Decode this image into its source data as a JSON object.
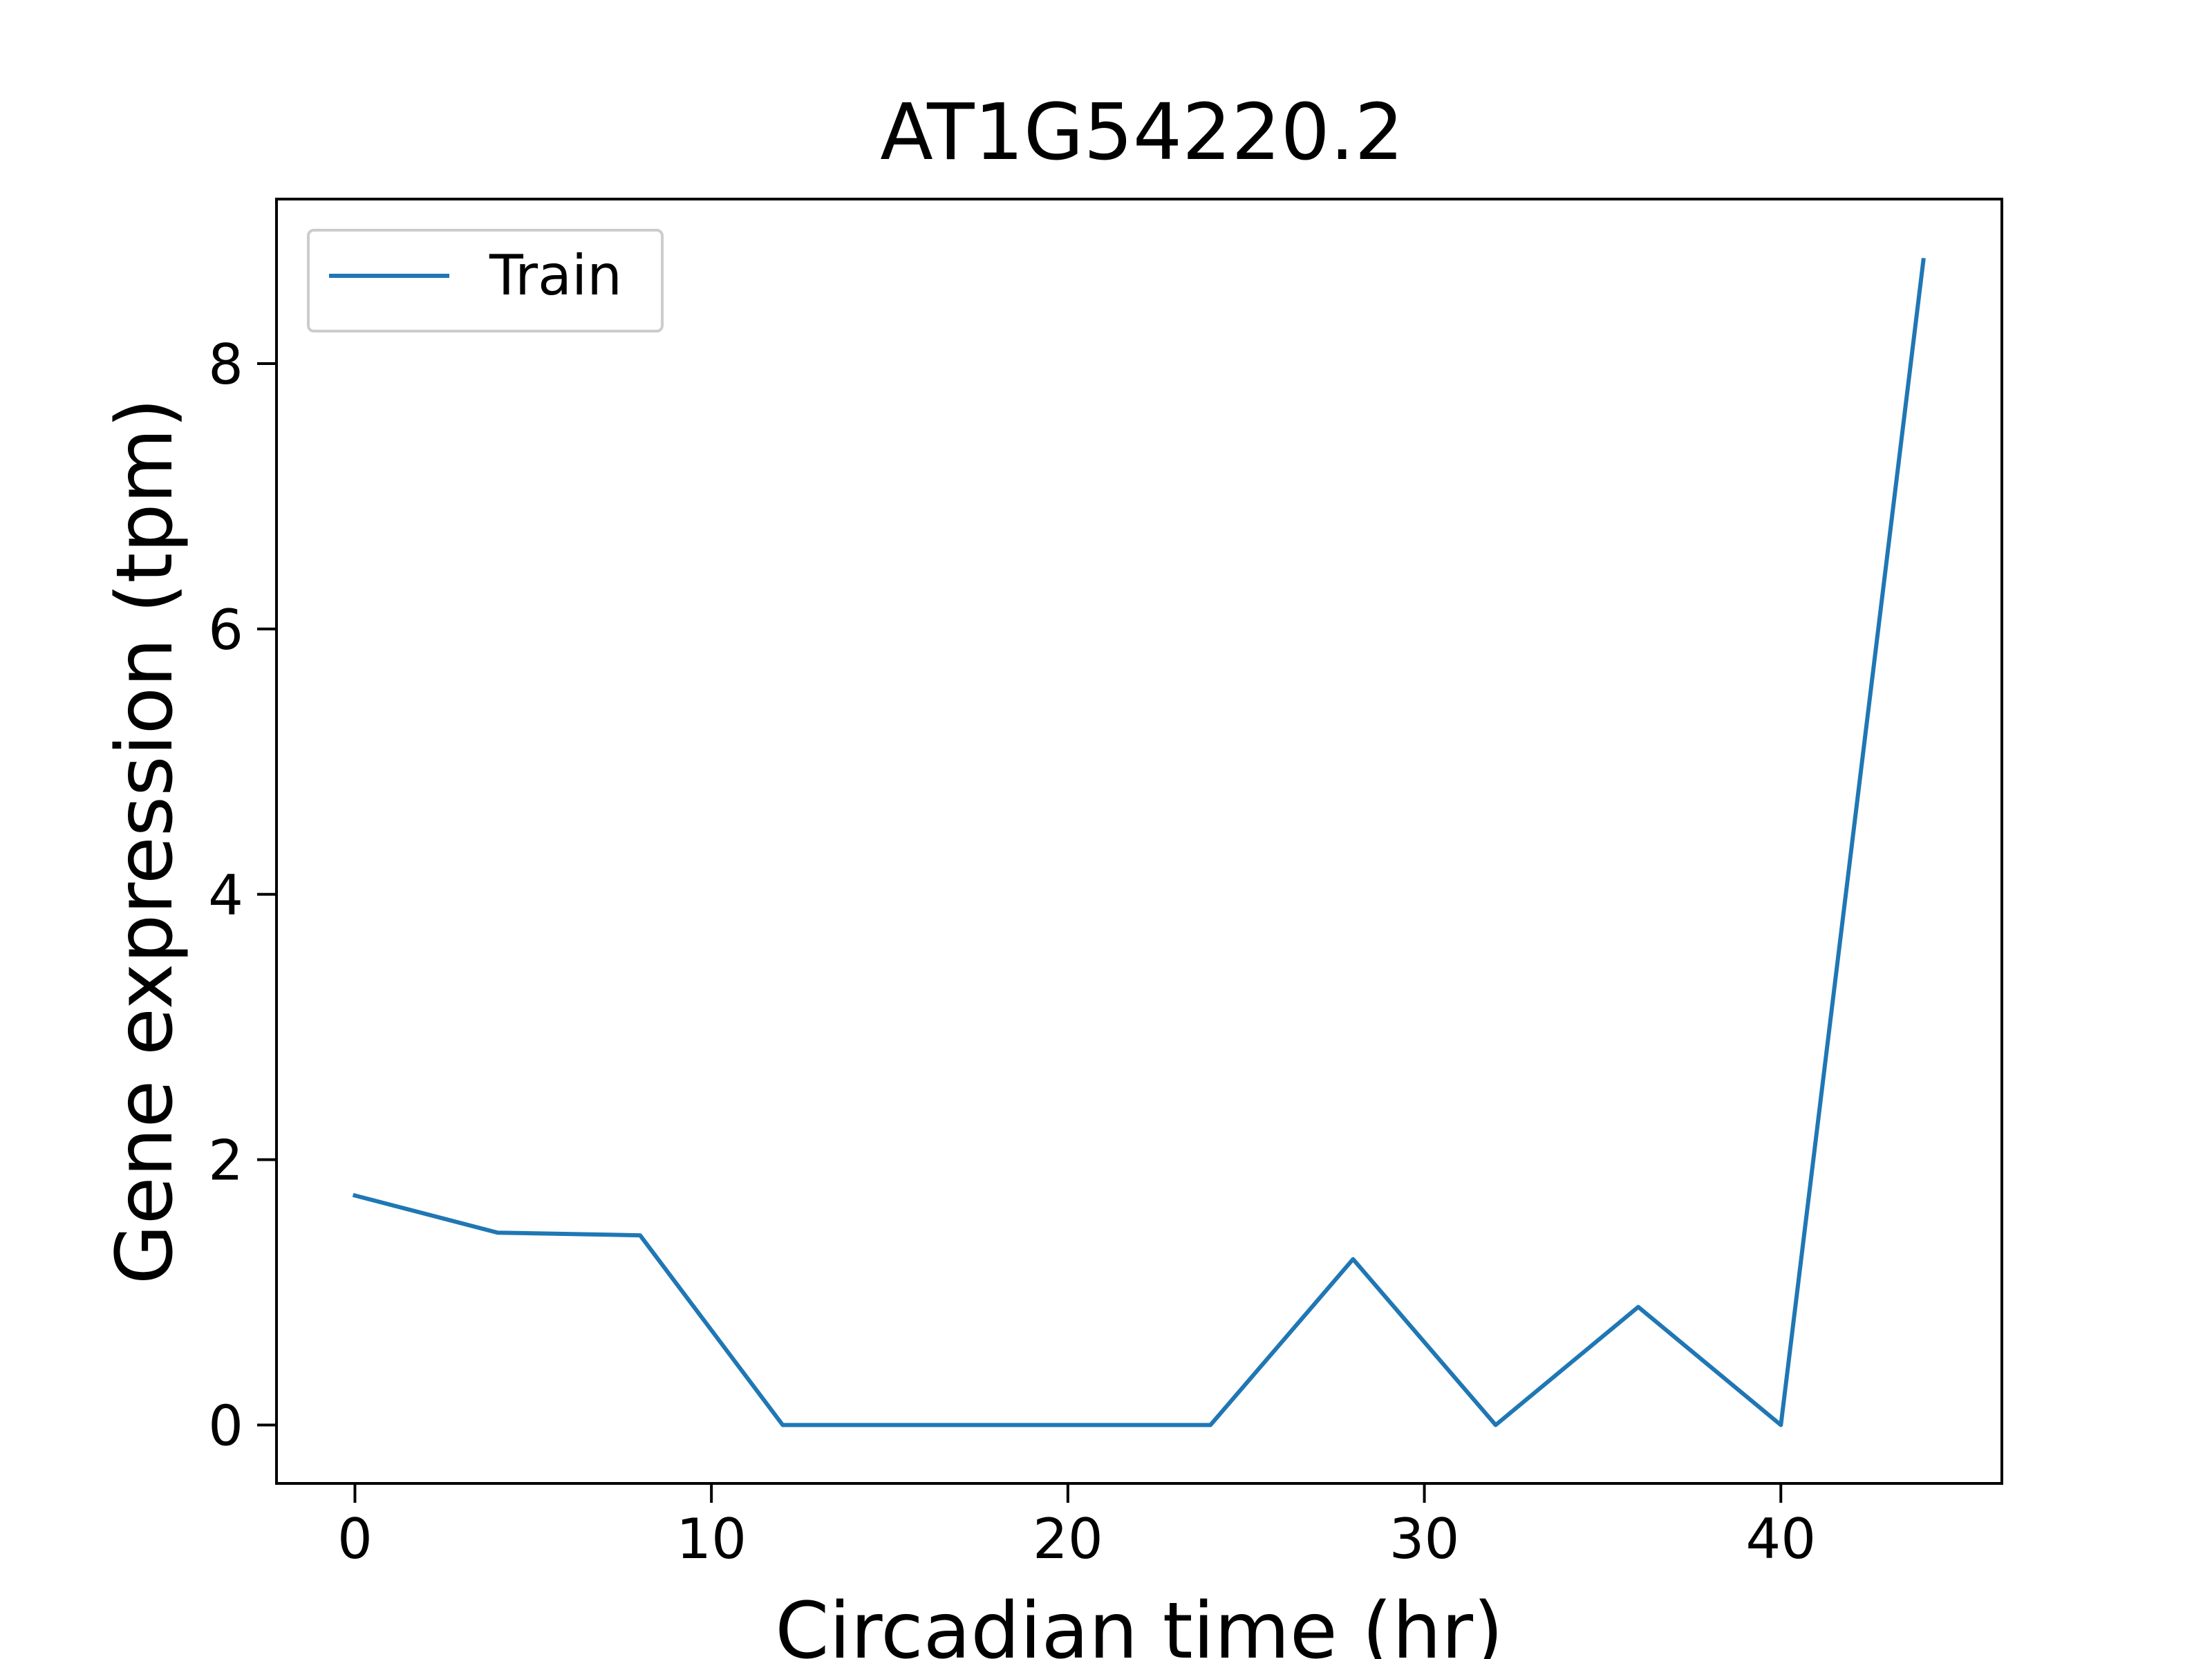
{
  "chart_data": {
    "type": "line",
    "title": "AT1G54220.2",
    "xlabel": "Circadian time (hr)",
    "ylabel": "Gene expression (tpm)",
    "xlim": [
      -2.2,
      46.2
    ],
    "ylim": [
      -0.44,
      9.24
    ],
    "xticks": [
      0,
      10,
      20,
      30,
      40
    ],
    "xtick_labels": [
      "0",
      "10",
      "20",
      "30",
      "40"
    ],
    "yticks": [
      0,
      2,
      4,
      6,
      8
    ],
    "ytick_labels": [
      "0",
      "2",
      "4",
      "6",
      "8"
    ],
    "grid": false,
    "legend": "upper-left",
    "series": [
      {
        "name": "Train",
        "color": "#1f77b4",
        "x": [
          0,
          4,
          8,
          12,
          16,
          20,
          24,
          28,
          32,
          36,
          40,
          44
        ],
        "y": [
          1.73,
          1.45,
          1.43,
          0.0,
          0.0,
          0.0,
          0.0,
          1.25,
          0.0,
          0.89,
          0.0,
          8.78
        ]
      }
    ]
  }
}
